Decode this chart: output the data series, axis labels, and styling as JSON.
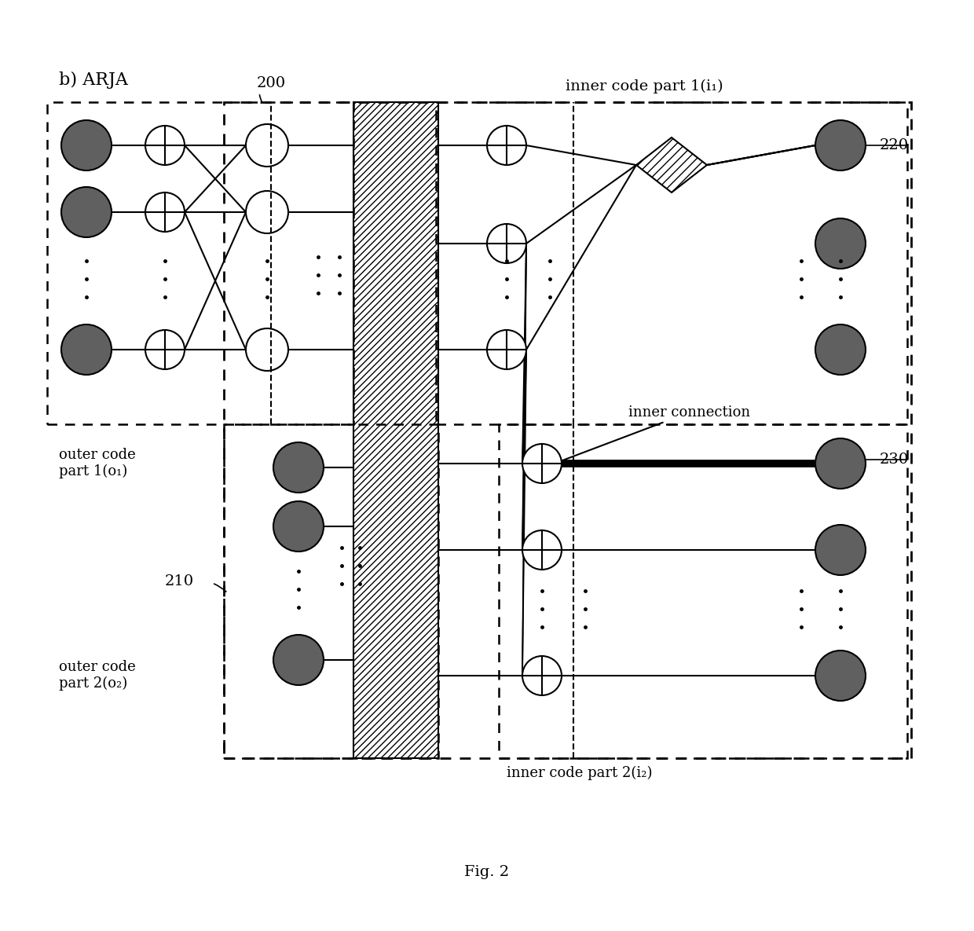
{
  "title": "Fig. 2",
  "label_b_arja": "b) ARJA",
  "label_200": "200",
  "label_210": "210",
  "label_220": "220",
  "label_230": "230",
  "label_outer1": "outer code\npart 1(o₁)",
  "label_outer2": "outer code\npart 2(o₂)",
  "label_inner1": "inner code part 1(i₁)",
  "label_inner2": "inner code part 2(i₂)",
  "label_inner_conn": "inner connection",
  "bg_color": "#ffffff",
  "dark_node_color": "#606060",
  "light_node_color": "#ffffff",
  "line_color": "#000000",
  "figsize": [
    12.4,
    11.85
  ],
  "dpi": 100
}
